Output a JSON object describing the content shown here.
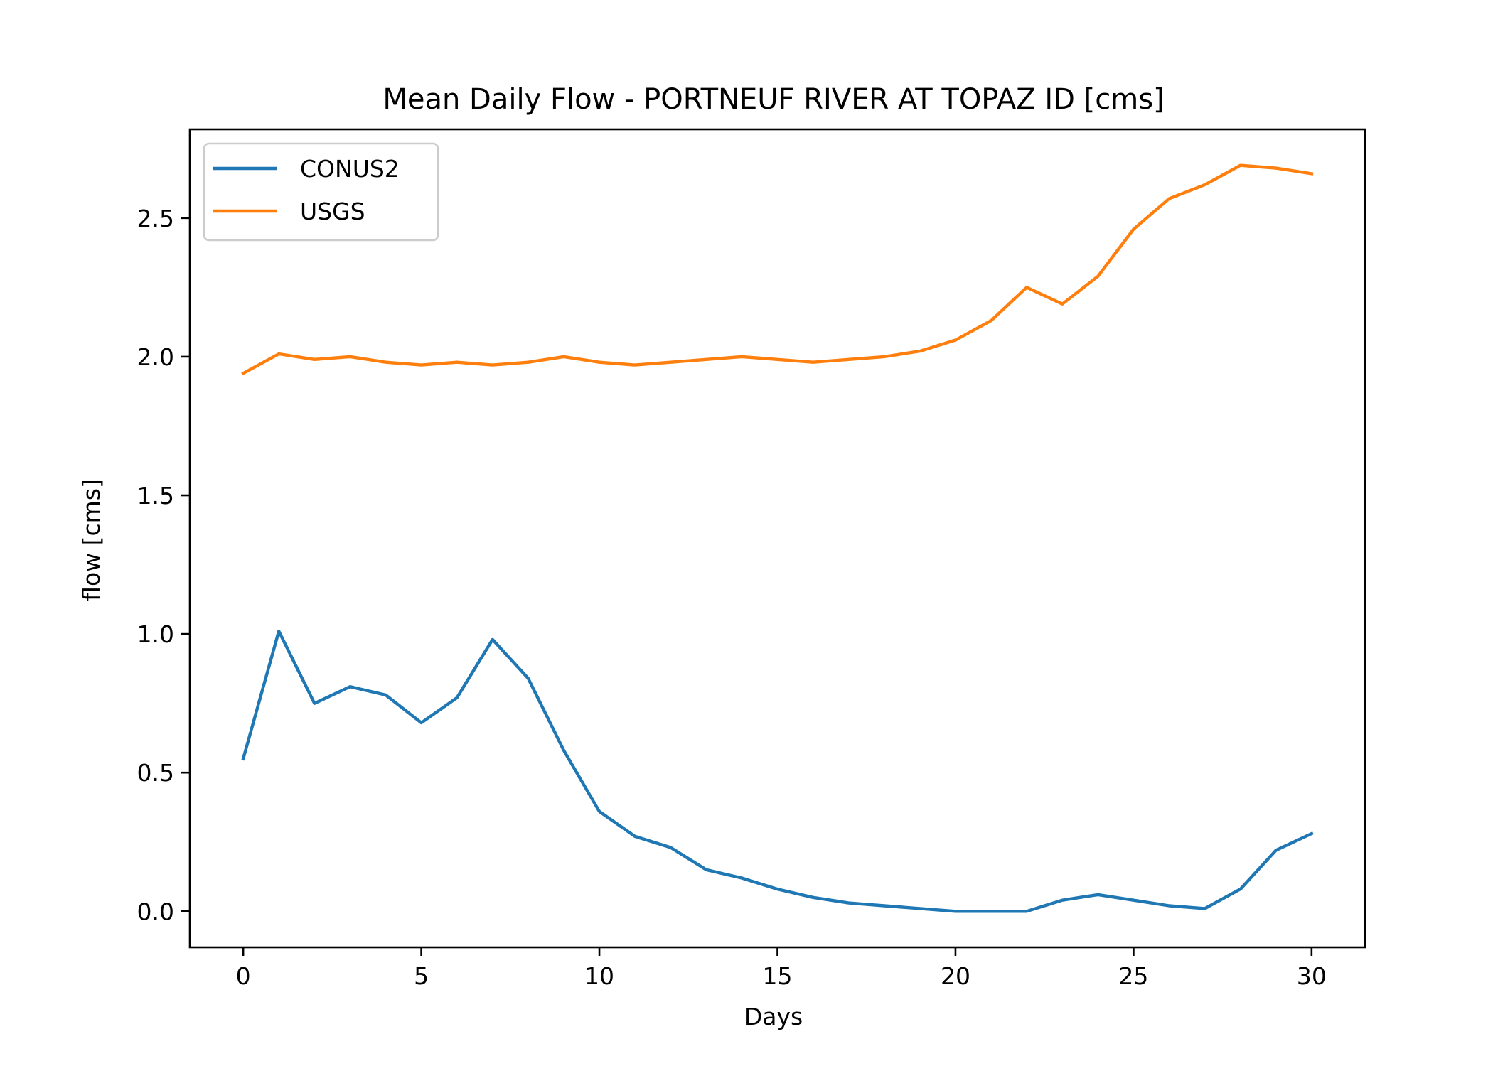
{
  "chart_data": {
    "type": "line",
    "title": "Mean Daily Flow - PORTNEUF RIVER AT TOPAZ ID [cms]",
    "xlabel": "Days",
    "ylabel": "flow [cms]",
    "xlim": [
      -1.5,
      31.5
    ],
    "ylim": [
      -0.13,
      2.82
    ],
    "x_ticks": [
      0,
      5,
      10,
      15,
      20,
      25,
      30
    ],
    "y_ticks": [
      0.0,
      0.5,
      1.0,
      1.5,
      2.0,
      2.5
    ],
    "x_tick_labels": [
      "0",
      "5",
      "10",
      "15",
      "20",
      "25",
      "30"
    ],
    "y_tick_labels": [
      "0.0",
      "0.5",
      "1.0",
      "1.5",
      "2.0",
      "2.5"
    ],
    "grid": false,
    "legend_position": "upper left",
    "x": [
      0,
      1,
      2,
      3,
      4,
      5,
      6,
      7,
      8,
      9,
      10,
      11,
      12,
      13,
      14,
      15,
      16,
      17,
      18,
      19,
      20,
      21,
      22,
      23,
      24,
      25,
      26,
      27,
      28,
      29,
      30
    ],
    "series": [
      {
        "name": "CONUS2",
        "color": "#1f77b4",
        "values": [
          0.55,
          1.01,
          0.75,
          0.81,
          0.78,
          0.68,
          0.77,
          0.98,
          0.84,
          0.58,
          0.36,
          0.27,
          0.23,
          0.15,
          0.12,
          0.08,
          0.05,
          0.03,
          0.02,
          0.01,
          0.0,
          0.0,
          0.0,
          0.04,
          0.06,
          0.04,
          0.02,
          0.01,
          0.08,
          0.22,
          0.28
        ]
      },
      {
        "name": "USGS",
        "color": "#ff7f0e",
        "values": [
          1.94,
          2.01,
          1.99,
          2.0,
          1.98,
          1.97,
          1.98,
          1.97,
          1.98,
          2.0,
          1.98,
          1.97,
          1.98,
          1.99,
          2.0,
          1.99,
          1.98,
          1.99,
          2.0,
          2.02,
          2.06,
          2.13,
          2.25,
          2.19,
          2.29,
          2.46,
          2.57,
          2.62,
          2.69,
          2.68,
          2.66
        ]
      }
    ]
  }
}
